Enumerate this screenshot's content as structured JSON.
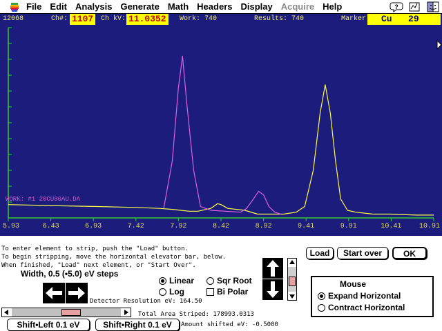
{
  "menubar": {
    "items": [
      {
        "label": "File",
        "enabled": true
      },
      {
        "label": "Edit",
        "enabled": true
      },
      {
        "label": "Analysis",
        "enabled": true
      },
      {
        "label": "Generate",
        "enabled": true
      },
      {
        "label": "Math",
        "enabled": true
      },
      {
        "label": "Headers",
        "enabled": true
      },
      {
        "label": "Display",
        "enabled": true
      },
      {
        "label": "Acquire",
        "enabled": false
      },
      {
        "label": "Help",
        "enabled": true
      }
    ],
    "icons": [
      "apple-icon",
      "help-balloon-icon",
      "application-icon",
      "finder-icon"
    ]
  },
  "plot_header": {
    "counts": "12068",
    "ch_label": "Ch#:",
    "ch_value": "1107",
    "kv_label": "Ch kV:",
    "kv_value": "11.0352",
    "work": "Work: 740",
    "results": "Results: 740",
    "marker_label": "Marker:",
    "marker_element": "Cu",
    "marker_number": "29"
  },
  "work_label": "WORK: #1  20CU80AU.DA",
  "colors": {
    "plot_bg": "#1c1c7c",
    "axis": "#33cc33",
    "spectrum": "#ffff44",
    "strip_peak": "#e060e0"
  },
  "chart_data": {
    "type": "line",
    "xlabel": "",
    "ylabel": "",
    "x_ticks": [
      "5.93",
      "6.43",
      "6.93",
      "7.42",
      "7.92",
      "8.42",
      "8.92",
      "9.41",
      "9.91",
      "10.41",
      "10.91"
    ],
    "xlim": [
      5.93,
      10.91
    ],
    "ylim": [
      0,
      1
    ],
    "series": [
      {
        "color": "#ffff44",
        "x": [
          5.93,
          6.43,
          6.93,
          7.42,
          7.7,
          7.85,
          7.95,
          8.05,
          8.15,
          8.3,
          8.38,
          8.42,
          8.5,
          8.7,
          8.85,
          9.0,
          9.15,
          9.3,
          9.4,
          9.5,
          9.58,
          9.64,
          9.7,
          9.76,
          9.82,
          9.9,
          10.0,
          10.2,
          10.41,
          10.7,
          10.91
        ],
        "y": [
          0.07,
          0.065,
          0.06,
          0.055,
          0.05,
          0.045,
          0.04,
          0.035,
          0.035,
          0.05,
          0.075,
          0.07,
          0.05,
          0.04,
          0.02,
          0.02,
          0.02,
          0.03,
          0.06,
          0.25,
          0.55,
          0.7,
          0.55,
          0.3,
          0.1,
          0.04,
          0.03,
          0.02,
          0.02,
          0.015,
          0.015
        ]
      },
      {
        "color": "#e060e0",
        "x": [
          7.75,
          7.85,
          7.92,
          7.97,
          8.02,
          8.1,
          8.18,
          8.3,
          8.65,
          8.72,
          8.8,
          8.86,
          8.92,
          8.98,
          9.05,
          9.12
        ],
        "y": [
          0.05,
          0.3,
          0.68,
          0.85,
          0.6,
          0.25,
          0.06,
          0.04,
          0.03,
          0.05,
          0.1,
          0.14,
          0.12,
          0.06,
          0.03,
          0.02
        ]
      }
    ]
  },
  "instructions": [
    "To enter element to strip, push the \"Load\" button.",
    "To begin stripping, move the horizontal elevator bar, below.",
    "When finished, \"Load\" next element, or \"Start Over\"."
  ],
  "width_label": "Width, 0.5 (•5.0) eV steps",
  "buttons": {
    "load": "Load",
    "start_over": "Start over",
    "ok": "OK",
    "shift_left": "Shift•Left 0.1 eV",
    "shift_right": "Shift•Right 0.1 eV"
  },
  "scale_options": {
    "linear": "Linear",
    "log": "Log",
    "sqr_root": "Sqr Root",
    "bi_polar": "Bi Polar",
    "selected": "Linear"
  },
  "detector_resolution": "Detector Resolution eV: 164.50",
  "total_area": "Total Area Striped:  178993.0313",
  "amount_shifted": "Amount shifted eV: -0.5000",
  "mouse_group": {
    "title": "Mouse",
    "expand": "Expand Horizontal",
    "contract": "Contract Horizontal",
    "selected": "Expand Horizontal"
  },
  "strip_progress": 0.55
}
